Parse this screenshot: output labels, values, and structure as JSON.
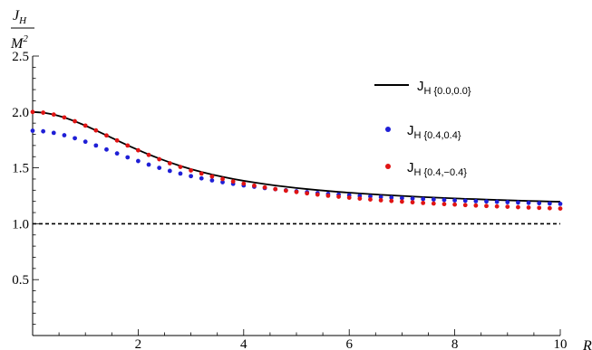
{
  "chart_data": {
    "type": "scatter",
    "x_label": "R",
    "y_label_num_main": "J",
    "y_label_num_sub": "H",
    "y_label_den_main": "M",
    "y_label_den_sup": "2",
    "xlim": [
      0,
      10
    ],
    "ylim": [
      0,
      2.5
    ],
    "x_ticks": [
      2,
      4,
      6,
      8,
      10
    ],
    "x_tick_labels": [
      "2",
      "4",
      "6",
      "8",
      "10"
    ],
    "y_ticks": [
      0.5,
      1.0,
      1.5,
      2.0,
      2.5
    ],
    "y_tick_labels": [
      "0.5",
      "1.0",
      "1.5",
      "2.0",
      "2.5"
    ],
    "reference_line": {
      "y": 1.0,
      "style": "dashed",
      "color": "#000000"
    },
    "legend_position": "upper-right inside",
    "series": [
      {
        "name": "J",
        "legend_sub": "H {0.0,0.0}",
        "render": "line",
        "color": "#000000",
        "x": [
          0,
          0.2,
          0.4,
          0.6,
          0.8,
          1.0,
          1.2,
          1.4,
          1.6,
          1.8,
          2.0,
          2.2,
          2.4,
          2.6,
          2.8,
          3.0,
          3.2,
          3.4,
          3.6,
          3.8,
          4.0,
          4.2,
          4.4,
          4.6,
          4.8,
          5.0,
          5.2,
          5.4,
          5.6,
          5.8,
          6.0,
          6.2,
          6.4,
          6.6,
          6.8,
          7.0,
          7.2,
          7.4,
          7.6,
          7.8,
          8.0,
          8.2,
          8.4,
          8.6,
          8.8,
          9.0,
          9.2,
          9.4,
          9.6,
          9.8,
          10.0
        ],
        "y": [
          2.0,
          1.994,
          1.977,
          1.951,
          1.917,
          1.878,
          1.835,
          1.791,
          1.746,
          1.702,
          1.66,
          1.62,
          1.583,
          1.549,
          1.517,
          1.489,
          1.463,
          1.44,
          1.42,
          1.401,
          1.384,
          1.369,
          1.355,
          1.342,
          1.331,
          1.32,
          1.31,
          1.301,
          1.293,
          1.285,
          1.278,
          1.271,
          1.265,
          1.259,
          1.254,
          1.249,
          1.244,
          1.239,
          1.235,
          1.231,
          1.227,
          1.223,
          1.22,
          1.216,
          1.213,
          1.21,
          1.207,
          1.204,
          1.202,
          1.199,
          1.197
        ]
      },
      {
        "name": "J",
        "legend_sub": "H {0.4,0.4}",
        "render": "dots",
        "color": "#1f1fd6",
        "x": [
          0,
          0.2,
          0.4,
          0.6,
          0.8,
          1.0,
          1.2,
          1.4,
          1.6,
          1.8,
          2.0,
          2.2,
          2.4,
          2.6,
          2.8,
          3.0,
          3.2,
          3.4,
          3.6,
          3.8,
          4.0,
          4.2,
          4.4,
          4.6,
          4.8,
          5.0,
          5.2,
          5.4,
          5.6,
          5.8,
          6.0,
          6.2,
          6.4,
          6.6,
          6.8,
          7.0,
          7.2,
          7.4,
          7.6,
          7.8,
          8.0,
          8.2,
          8.4,
          8.6,
          8.8,
          9.0,
          9.2,
          9.4,
          9.6,
          9.8,
          10.0
        ],
        "y": [
          1.832,
          1.827,
          1.813,
          1.792,
          1.765,
          1.734,
          1.7,
          1.664,
          1.629,
          1.594,
          1.561,
          1.529,
          1.5,
          1.473,
          1.449,
          1.426,
          1.406,
          1.388,
          1.372,
          1.357,
          1.343,
          1.331,
          1.319,
          1.309,
          1.299,
          1.29,
          1.282,
          1.274,
          1.267,
          1.261,
          1.255,
          1.249,
          1.244,
          1.239,
          1.234,
          1.229,
          1.225,
          1.221,
          1.217,
          1.213,
          1.209,
          1.206,
          1.202,
          1.199,
          1.196,
          1.193,
          1.19,
          1.187,
          1.184,
          1.181,
          1.178
        ]
      },
      {
        "name": "J",
        "legend_sub": "H {0.4,−0.4}",
        "render": "dots",
        "color": "#e01414",
        "x": [
          0,
          0.2,
          0.4,
          0.6,
          0.8,
          1.0,
          1.2,
          1.4,
          1.6,
          1.8,
          2.0,
          2.2,
          2.4,
          2.6,
          2.8,
          3.0,
          3.2,
          3.4,
          3.6,
          3.8,
          4.0,
          4.2,
          4.4,
          4.6,
          4.8,
          5.0,
          5.2,
          5.4,
          5.6,
          5.8,
          6.0,
          6.2,
          6.4,
          6.6,
          6.8,
          7.0,
          7.2,
          7.4,
          7.6,
          7.8,
          8.0,
          8.2,
          8.4,
          8.6,
          8.8,
          9.0,
          9.2,
          9.4,
          9.6,
          9.8,
          10.0
        ],
        "y": [
          2.0,
          1.994,
          1.977,
          1.951,
          1.917,
          1.878,
          1.835,
          1.79,
          1.745,
          1.7,
          1.657,
          1.616,
          1.577,
          1.541,
          1.508,
          1.477,
          1.449,
          1.423,
          1.4,
          1.378,
          1.359,
          1.341,
          1.325,
          1.31,
          1.296,
          1.284,
          1.272,
          1.261,
          1.251,
          1.242,
          1.233,
          1.225,
          1.217,
          1.21,
          1.204,
          1.198,
          1.192,
          1.186,
          1.181,
          1.176,
          1.172,
          1.167,
          1.163,
          1.159,
          1.155,
          1.152,
          1.148,
          1.145,
          1.142,
          1.139,
          1.136
        ]
      }
    ]
  }
}
